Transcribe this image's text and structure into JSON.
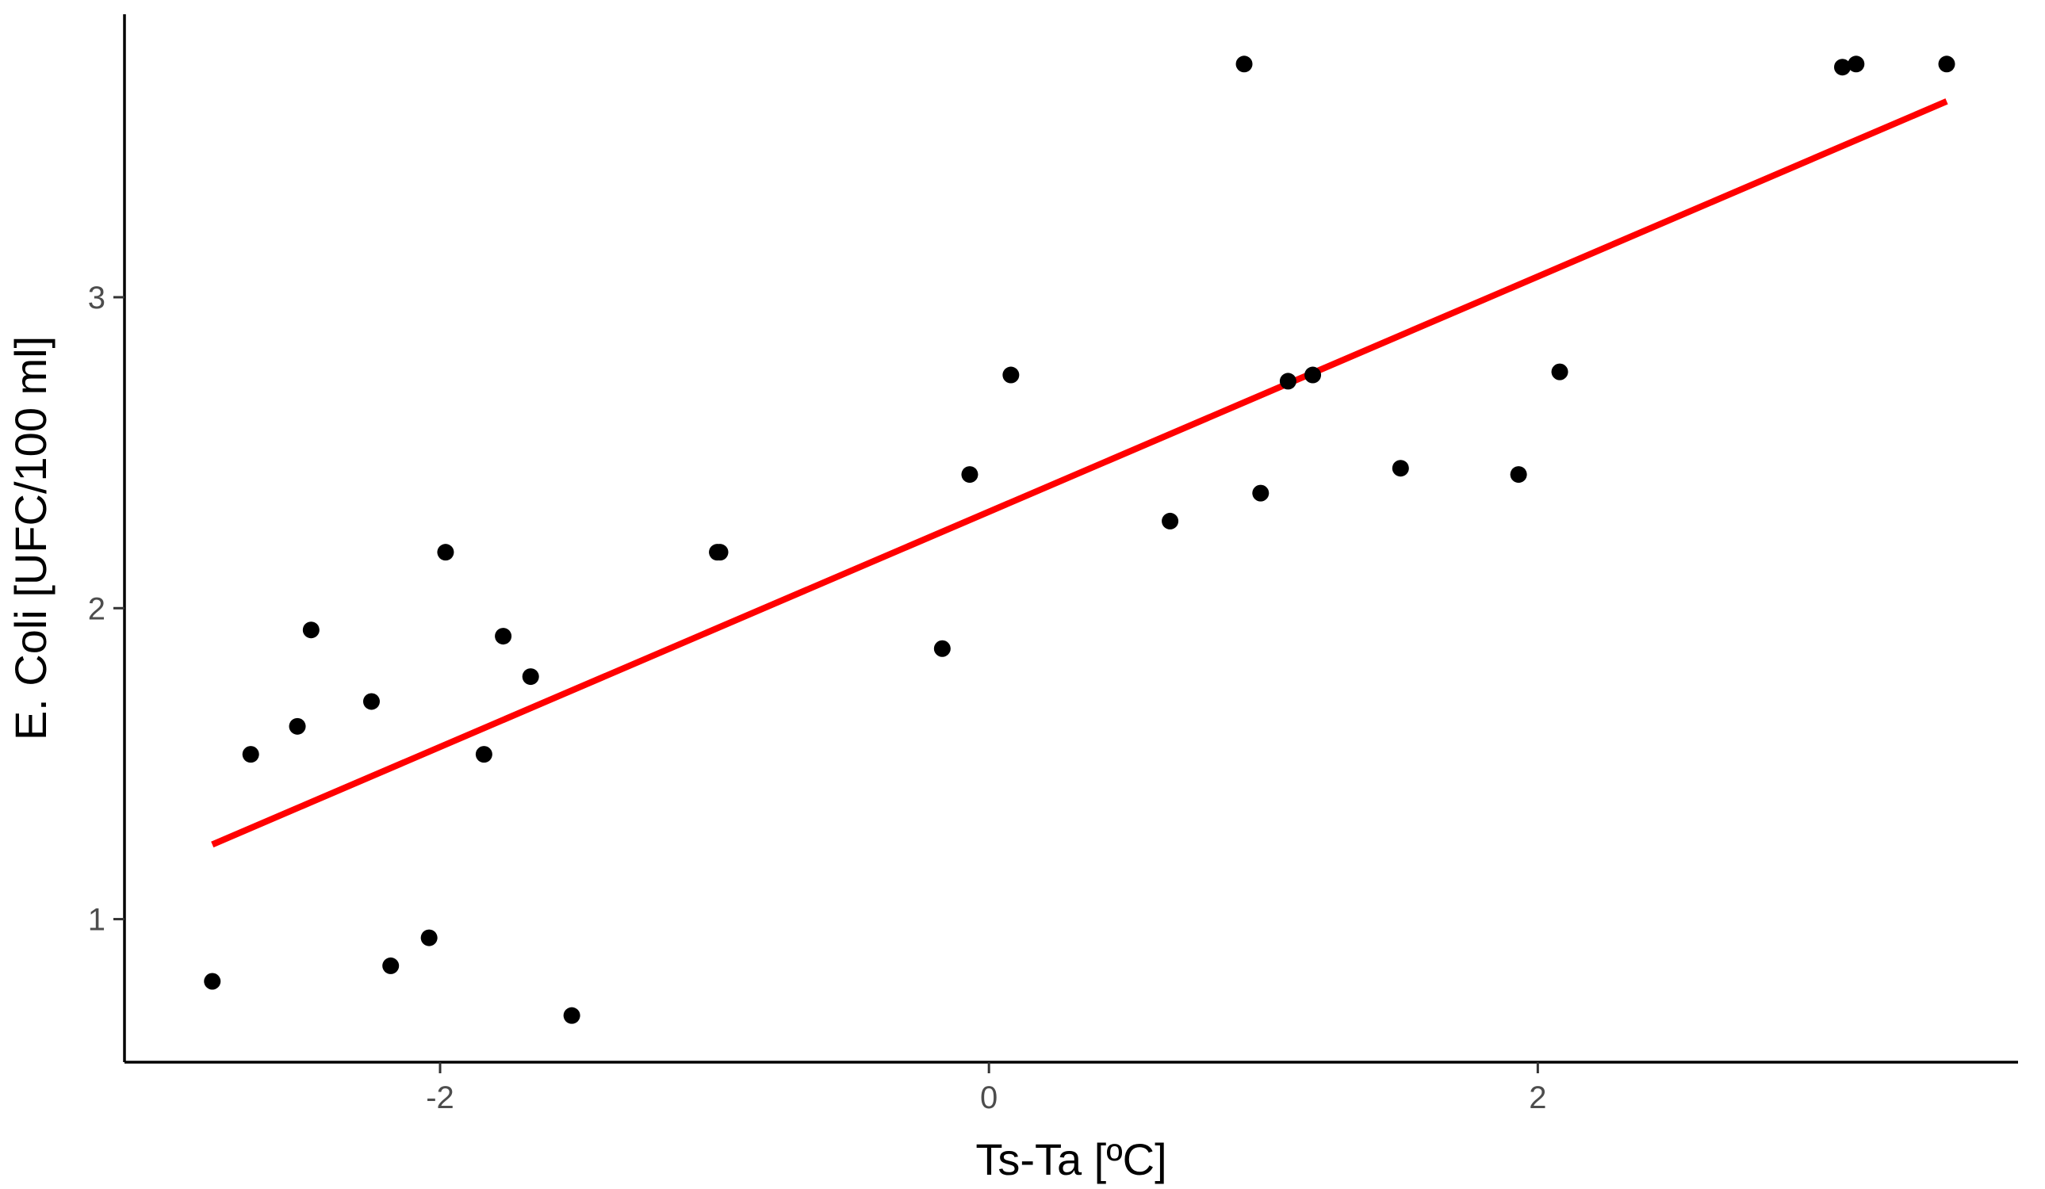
{
  "chart_data": {
    "type": "scatter",
    "xlabel": "Ts-Ta [ºC]",
    "ylabel": "E. Coli [UFC/100 ml]",
    "xlim": [
      -3.15,
      3.75
    ],
    "ylim": [
      0.54,
      3.91
    ],
    "x_ticks": [
      -2,
      0,
      2
    ],
    "y_ticks": [
      1,
      2,
      3
    ],
    "x_tick_labels": [
      "-2",
      "0",
      "2"
    ],
    "y_tick_labels": [
      "1",
      "2",
      "3"
    ],
    "grid": false,
    "legend": "none",
    "point_color": "#000000",
    "trend_color": "#ff0000",
    "series": [
      {
        "kind": "points",
        "x": [
          -2.83,
          -2.69,
          -2.52,
          -2.47,
          -2.25,
          -2.18,
          -2.04,
          -1.98,
          -1.84,
          -1.77,
          -1.67,
          -1.52,
          -0.99,
          -0.98,
          -0.17,
          -0.07,
          0.08,
          0.66,
          0.93,
          0.99,
          1.09,
          1.18,
          1.5,
          1.93,
          2.08,
          3.11,
          3.16,
          3.49
        ],
        "y": [
          0.8,
          1.53,
          1.62,
          1.93,
          1.7,
          0.85,
          0.94,
          2.18,
          1.53,
          1.91,
          1.78,
          0.69,
          2.18,
          2.18,
          1.87,
          2.43,
          2.75,
          2.28,
          3.75,
          2.37,
          2.73,
          2.75,
          2.45,
          2.43,
          2.76,
          3.74,
          3.75,
          3.75
        ]
      },
      {
        "kind": "line",
        "x": [
          -2.83,
          3.49
        ],
        "y": [
          1.24,
          3.63
        ]
      }
    ]
  }
}
